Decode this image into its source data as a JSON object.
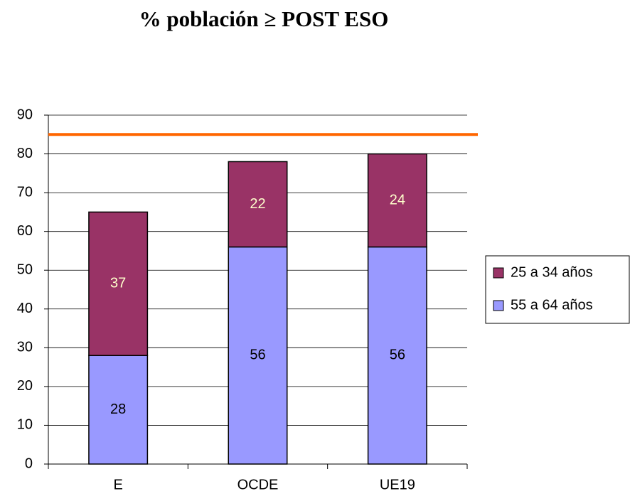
{
  "chart_data": {
    "type": "stacked_bar",
    "title": "% población ≥ POST ESO",
    "categories": [
      "E",
      "OCDE",
      "UE19"
    ],
    "series": [
      {
        "name": "55 a 64 años",
        "color": "#9999ff",
        "label_color": "#000000",
        "values": [
          28,
          56,
          56
        ]
      },
      {
        "name": "25 a 34 años",
        "color": "#993366",
        "label_color": "#ffffcc",
        "values": [
          37,
          22,
          24
        ]
      }
    ],
    "reference_line": {
      "value": 85,
      "color": "#ff6600"
    },
    "ylim": [
      0,
      90
    ],
    "yticks": [
      0,
      10,
      20,
      30,
      40,
      50,
      60,
      70,
      80,
      90
    ],
    "grid": true,
    "legend": "right"
  }
}
